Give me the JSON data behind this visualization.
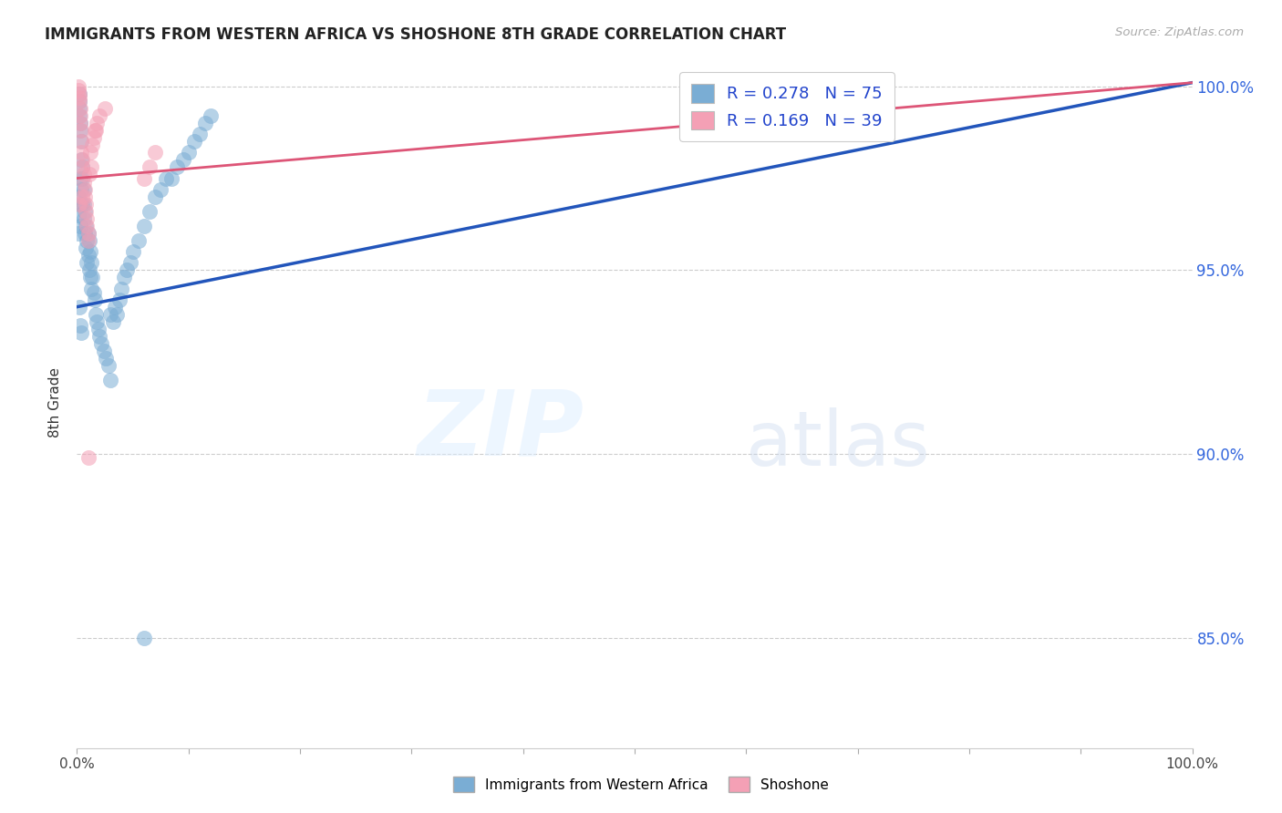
{
  "title": "IMMIGRANTS FROM WESTERN AFRICA VS SHOSHONE 8TH GRADE CORRELATION CHART",
  "source": "Source: ZipAtlas.com",
  "ylabel": "8th Grade",
  "blue_label": "Immigrants from Western Africa",
  "pink_label": "Shoshone",
  "blue_R": 0.278,
  "blue_N": 75,
  "pink_R": 0.169,
  "pink_N": 39,
  "blue_color": "#7AADD4",
  "pink_color": "#F4A0B5",
  "blue_line_color": "#2255BB",
  "pink_line_color": "#DD5577",
  "xmin": 0.0,
  "xmax": 1.0,
  "ymin": 0.82,
  "ymax": 1.008,
  "yticks": [
    0.85,
    0.9,
    0.95,
    1.0
  ],
  "ytick_labels": [
    "85.0%",
    "90.0%",
    "95.0%",
    "100.0%"
  ],
  "grid_color": "#cccccc",
  "blue_x": [
    0.001,
    0.001,
    0.001,
    0.002,
    0.002,
    0.002,
    0.002,
    0.002,
    0.003,
    0.003,
    0.003,
    0.003,
    0.004,
    0.004,
    0.004,
    0.005,
    0.005,
    0.005,
    0.006,
    0.006,
    0.006,
    0.007,
    0.007,
    0.008,
    0.008,
    0.009,
    0.009,
    0.01,
    0.01,
    0.011,
    0.011,
    0.012,
    0.012,
    0.013,
    0.013,
    0.014,
    0.015,
    0.016,
    0.017,
    0.018,
    0.019,
    0.02,
    0.022,
    0.024,
    0.026,
    0.028,
    0.03,
    0.032,
    0.034,
    0.036,
    0.038,
    0.04,
    0.042,
    0.045,
    0.048,
    0.05,
    0.055,
    0.06,
    0.065,
    0.07,
    0.075,
    0.08,
    0.085,
    0.09,
    0.095,
    0.1,
    0.105,
    0.11,
    0.115,
    0.12,
    0.002,
    0.003,
    0.004,
    0.03,
    0.06
  ],
  "blue_y": [
    0.97,
    0.965,
    0.96,
    0.998,
    0.996,
    0.994,
    0.992,
    0.968,
    0.99,
    0.988,
    0.975,
    0.962,
    0.985,
    0.98,
    0.972,
    0.978,
    0.975,
    0.968,
    0.972,
    0.968,
    0.964,
    0.966,
    0.96,
    0.962,
    0.956,
    0.958,
    0.952,
    0.96,
    0.954,
    0.958,
    0.95,
    0.955,
    0.948,
    0.952,
    0.945,
    0.948,
    0.944,
    0.942,
    0.938,
    0.936,
    0.934,
    0.932,
    0.93,
    0.928,
    0.926,
    0.924,
    0.938,
    0.936,
    0.94,
    0.938,
    0.942,
    0.945,
    0.948,
    0.95,
    0.952,
    0.955,
    0.958,
    0.962,
    0.966,
    0.97,
    0.972,
    0.975,
    0.975,
    0.978,
    0.98,
    0.982,
    0.985,
    0.987,
    0.99,
    0.992,
    0.94,
    0.935,
    0.933,
    0.92,
    0.85
  ],
  "pink_x": [
    0.001,
    0.001,
    0.002,
    0.002,
    0.002,
    0.003,
    0.003,
    0.003,
    0.004,
    0.004,
    0.004,
    0.005,
    0.005,
    0.006,
    0.006,
    0.007,
    0.007,
    0.008,
    0.008,
    0.009,
    0.009,
    0.01,
    0.01,
    0.011,
    0.012,
    0.013,
    0.014,
    0.015,
    0.016,
    0.017,
    0.018,
    0.02,
    0.025,
    0.06,
    0.065,
    0.07,
    0.002,
    0.005,
    0.01
  ],
  "pink_y": [
    1.0,
    0.999,
    0.998,
    0.997,
    0.996,
    0.994,
    0.992,
    0.99,
    0.988,
    0.985,
    0.982,
    0.98,
    0.978,
    0.976,
    0.974,
    0.972,
    0.97,
    0.968,
    0.966,
    0.964,
    0.962,
    0.96,
    0.958,
    0.976,
    0.982,
    0.978,
    0.984,
    0.986,
    0.988,
    0.988,
    0.99,
    0.992,
    0.994,
    0.975,
    0.978,
    0.982,
    0.968,
    0.97,
    0.899
  ],
  "blue_line_x0": 0.0,
  "blue_line_x1": 1.0,
  "blue_line_y0": 0.94,
  "blue_line_y1": 1.001,
  "pink_line_x0": 0.0,
  "pink_line_x1": 1.0,
  "pink_line_y0": 0.975,
  "pink_line_y1": 1.001
}
